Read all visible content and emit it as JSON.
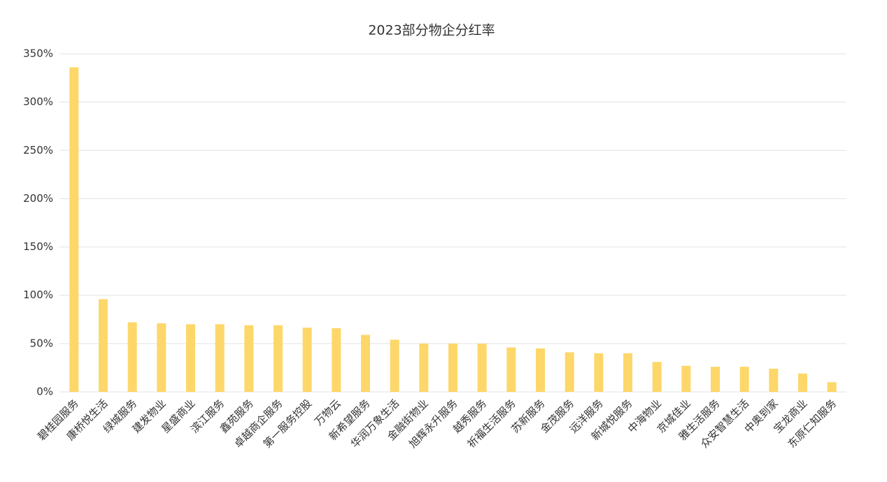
{
  "chart_data": {
    "type": "bar",
    "title": "2023部分物企分红率",
    "categories": [
      "碧桂园服务",
      "康桥悦生活",
      "绿城服务",
      "建发物业",
      "星盛商业",
      "滨江服务",
      "鑫苑服务",
      "卓越商企服务",
      "第一服务控股",
      "万物云",
      "新希望服务",
      "华润万象生活",
      "金融街物业",
      "旭辉永升服务",
      "越秀服务",
      "祈福生活服务",
      "苏新服务",
      "金茂服务",
      "远洋服务",
      "新城悦服务",
      "中海物业",
      "京城佳业",
      "雅生活服务",
      "众安智慧生活",
      "中奥到家",
      "宝龙商业",
      "东原仁知服务"
    ],
    "values": [
      336,
      96,
      72,
      71,
      70,
      70,
      69,
      69,
      66.5,
      66,
      59,
      54,
      50,
      50,
      50,
      46,
      45,
      41,
      40,
      40,
      31,
      27,
      26,
      26,
      24,
      19,
      10
    ],
    "color": "#fdd769",
    "ylim": [
      0,
      350
    ],
    "yticks": [
      {
        "value": 0,
        "label": "0%"
      },
      {
        "value": 50,
        "label": "50%"
      },
      {
        "value": 100,
        "label": "100%"
      },
      {
        "value": 150,
        "label": "150%"
      },
      {
        "value": 200,
        "label": "200%"
      },
      {
        "value": 250,
        "label": "250%"
      },
      {
        "value": 300,
        "label": "300%"
      },
      {
        "value": 350,
        "label": "350%"
      }
    ],
    "grid": true
  }
}
